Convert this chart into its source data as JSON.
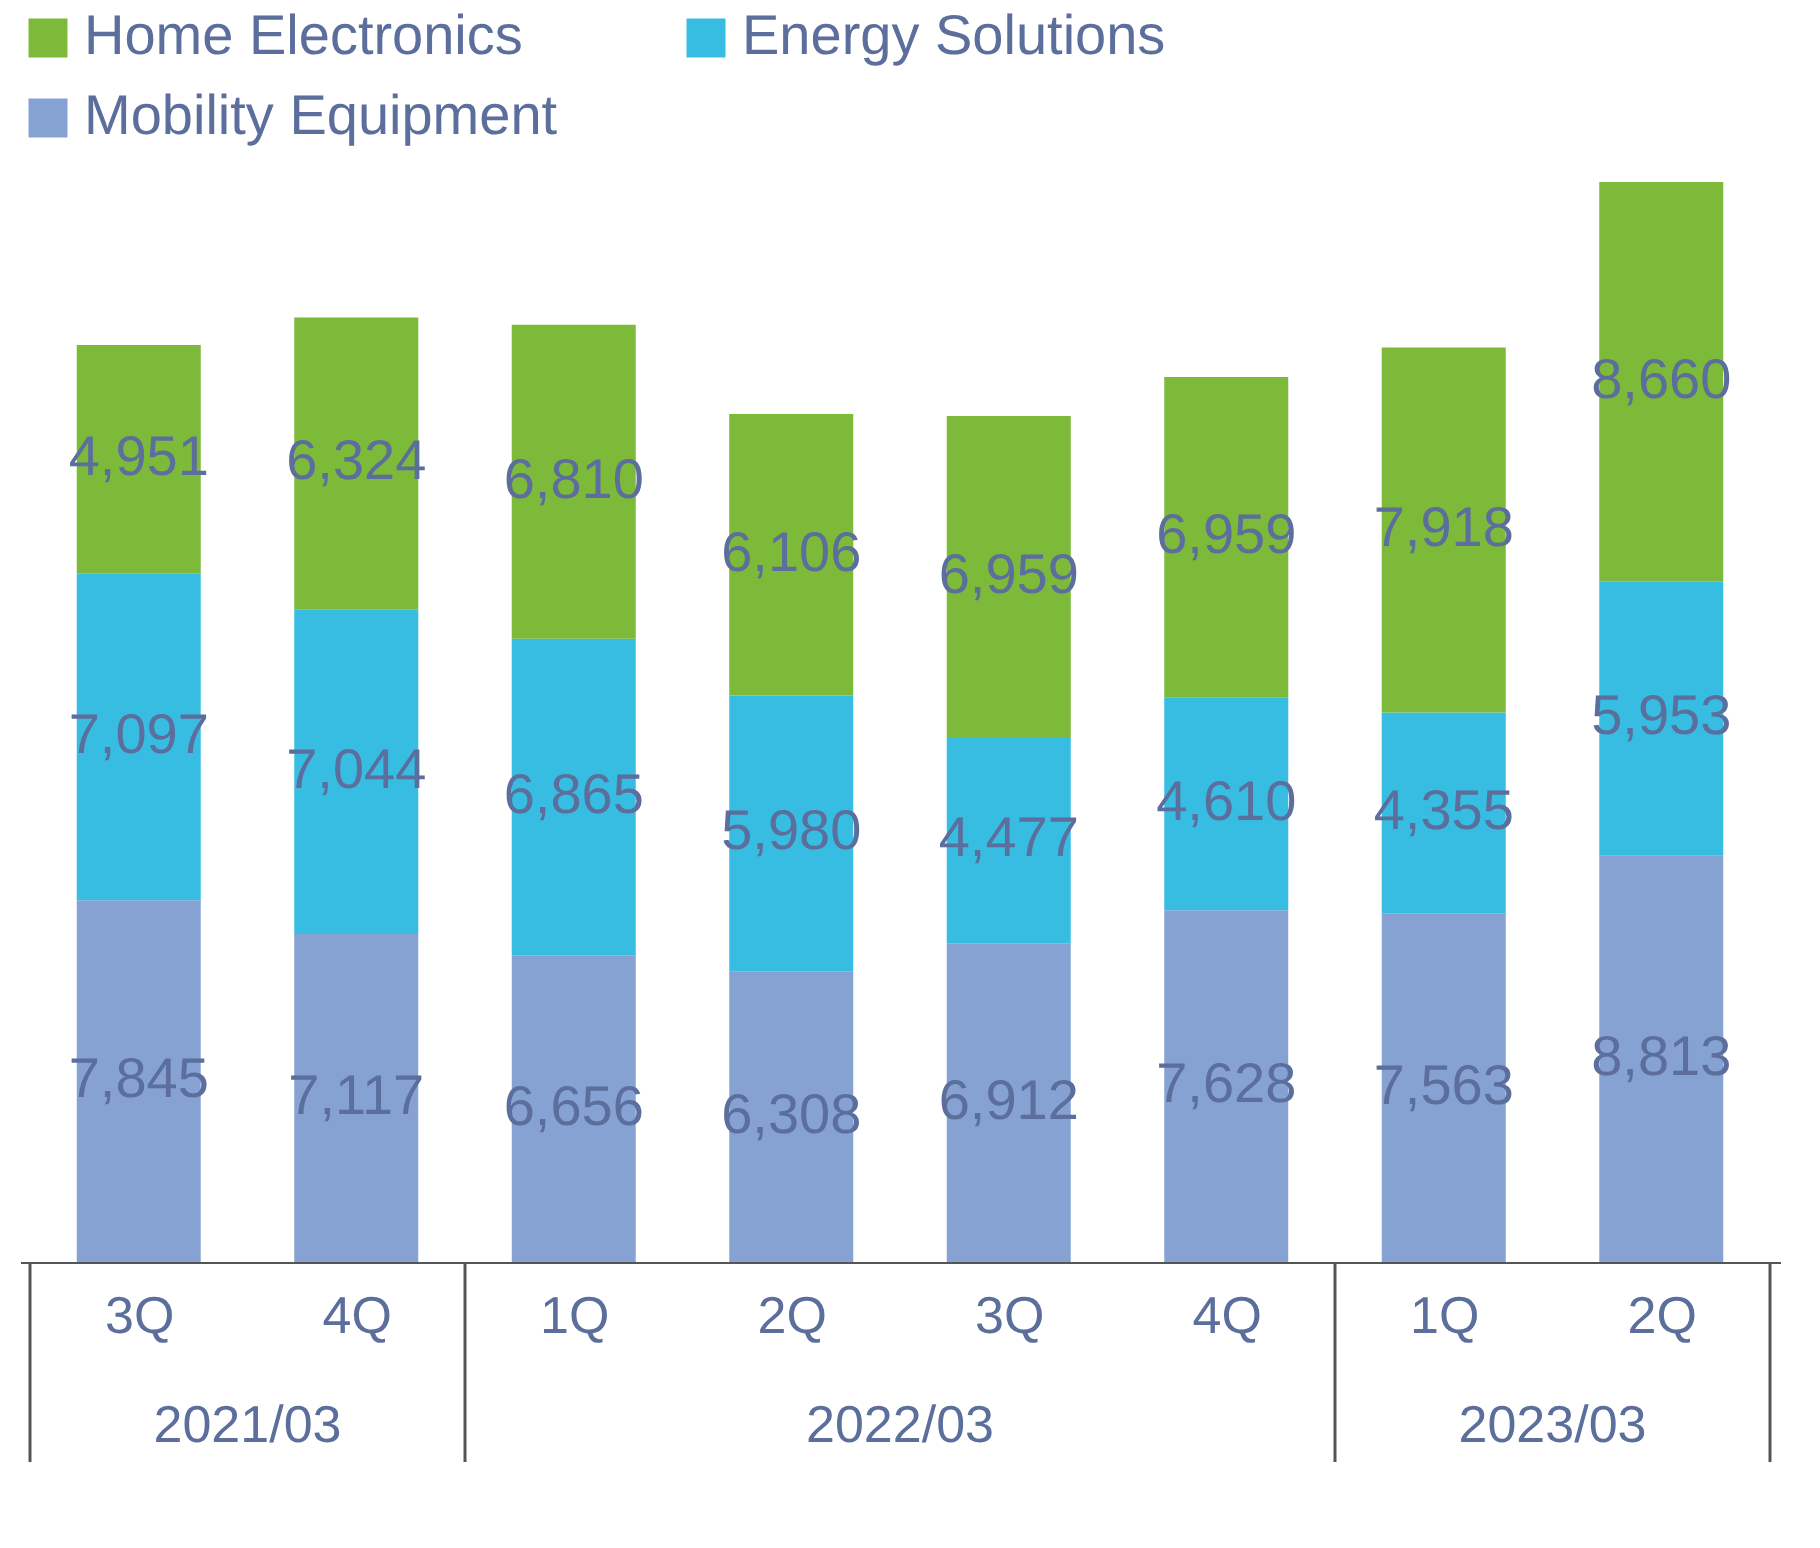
{
  "chart_data": {
    "type": "bar",
    "stacked": true,
    "legend": "top",
    "categories": [
      "3Q",
      "4Q",
      "1Q",
      "2Q",
      "3Q",
      "4Q",
      "1Q",
      "2Q"
    ],
    "series": [
      {
        "name": "Mobility Equipment",
        "color": "#86a2d3",
        "values": [
          7845,
          7117,
          6656,
          6308,
          6912,
          7628,
          7563,
          8813
        ],
        "value_labels": [
          "7,845",
          "7,117",
          "6,656",
          "6,308",
          "6,912",
          "7,628",
          "7,563",
          "8,813"
        ]
      },
      {
        "name": "Energy Solutions",
        "color": "#38bde2",
        "values": [
          7097,
          7044,
          6865,
          5980,
          4477,
          4610,
          4355,
          5953
        ],
        "value_labels": [
          "7,097",
          "7,044",
          "6,865",
          "5,980",
          "4,477",
          "4,610",
          "4,355",
          "5,953"
        ]
      },
      {
        "name": "Home Electronics",
        "color": "#7dba3a",
        "values": [
          4951,
          6324,
          6810,
          6106,
          6959,
          6959,
          7918,
          8660
        ],
        "value_labels": [
          "4,951",
          "6,324",
          "6,810",
          "6,106",
          "6,959",
          "6,959",
          "7,918",
          "8,660"
        ]
      }
    ],
    "annotations": [
      "2021/03",
      "2022/03",
      "2023/03"
    ]
  }
}
